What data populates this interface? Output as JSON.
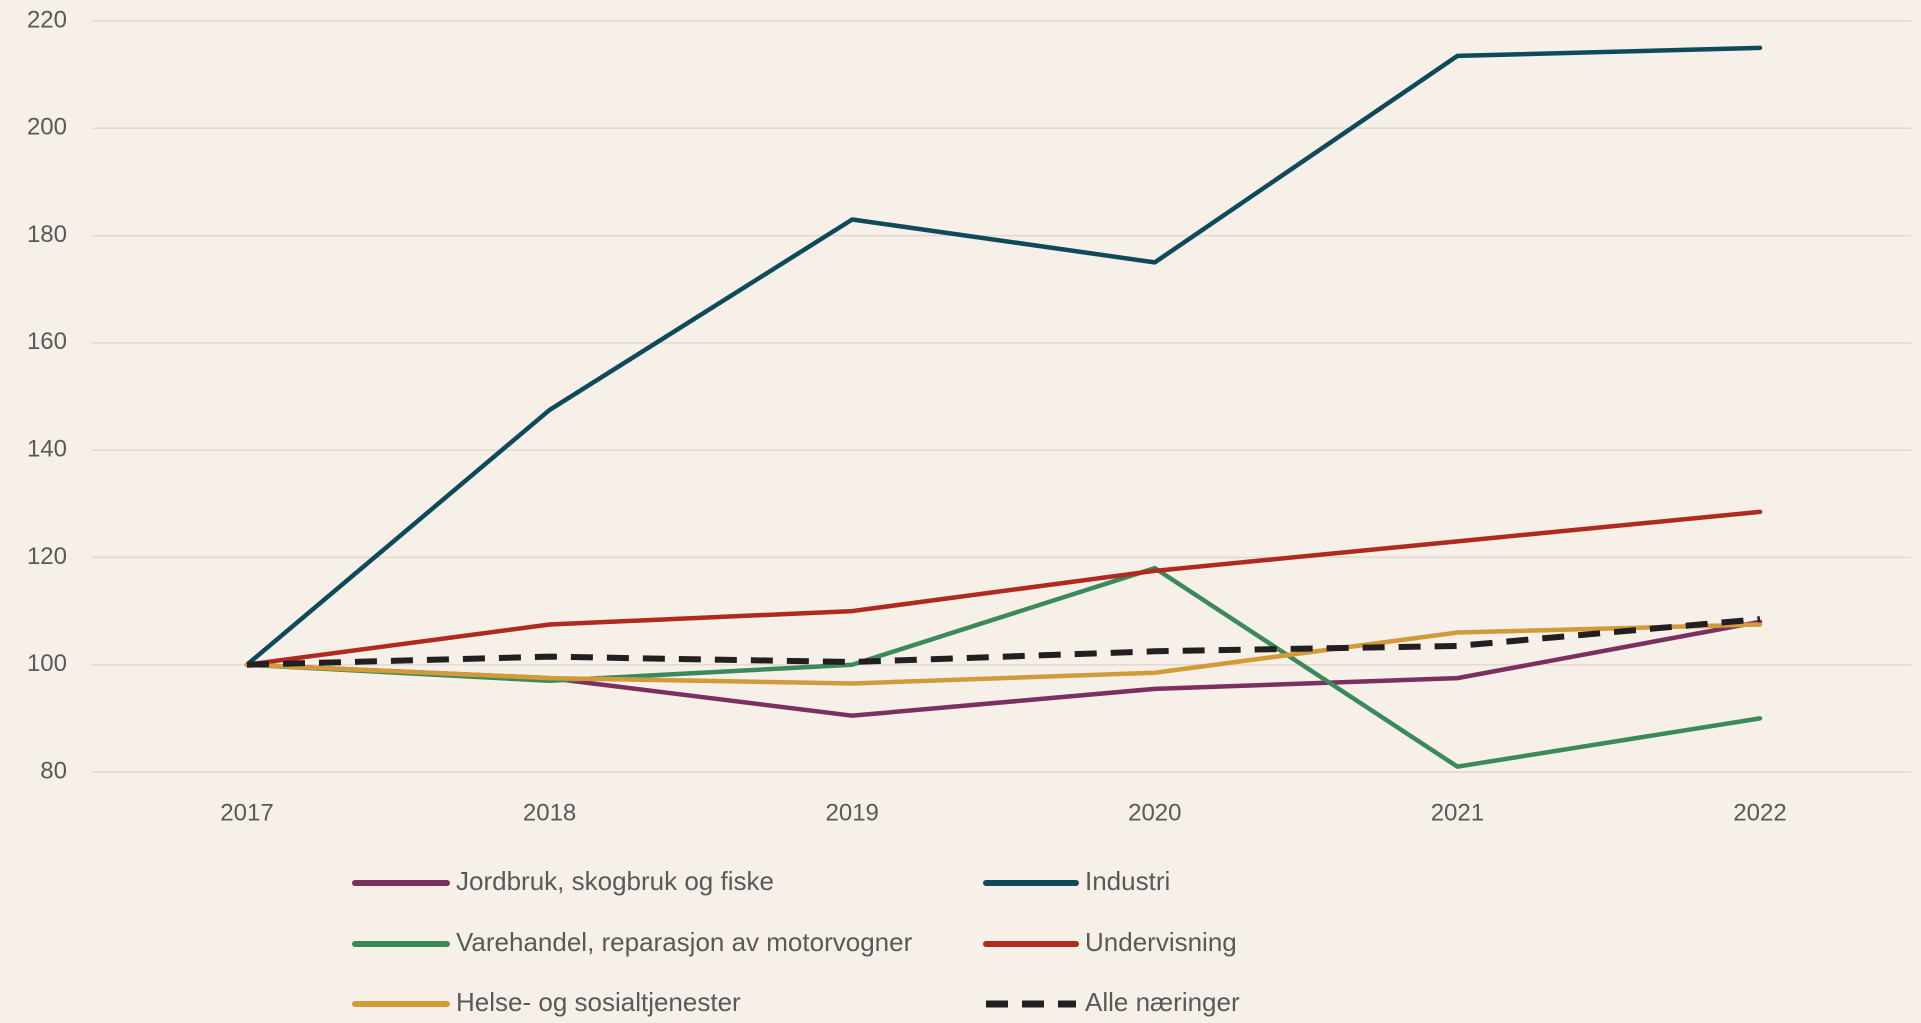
{
  "chart_data": {
    "type": "line",
    "categories": [
      "2017",
      "2018",
      "2019",
      "2020",
      "2021",
      "2022"
    ],
    "series": [
      {
        "name": "Jordbruk, skogbruk og fiske",
        "color": "#7b3060",
        "values": [
          100,
          97.5,
          90.5,
          95.5,
          97.5,
          108
        ]
      },
      {
        "name": "Industri",
        "color": "#0f4a5c",
        "values": [
          100,
          147.5,
          183,
          175,
          213.5,
          215
        ]
      },
      {
        "name": "Varehandel, reparasjon av motorvogner",
        "color": "#3a8a5c",
        "values": [
          100,
          97,
          100,
          118,
          81,
          90
        ]
      },
      {
        "name": "Undervisning",
        "color": "#b02a1f",
        "values": [
          100,
          107.5,
          110,
          117.5,
          123,
          128.5
        ]
      },
      {
        "name": "Helse- og sosialtjenester",
        "color": "#d39a3a",
        "values": [
          100,
          97.5,
          96.5,
          98.5,
          106,
          107.5
        ]
      },
      {
        "name": "Alle næringer",
        "color": "#231f20",
        "dashed": true,
        "values": [
          100,
          101.5,
          100.5,
          102.5,
          103.5,
          108.5
        ]
      }
    ],
    "ylim": [
      80,
      220
    ],
    "yticks": [
      80,
      100,
      120,
      140,
      160,
      180,
      200,
      220
    ],
    "grid": true,
    "legend": "bottom"
  }
}
